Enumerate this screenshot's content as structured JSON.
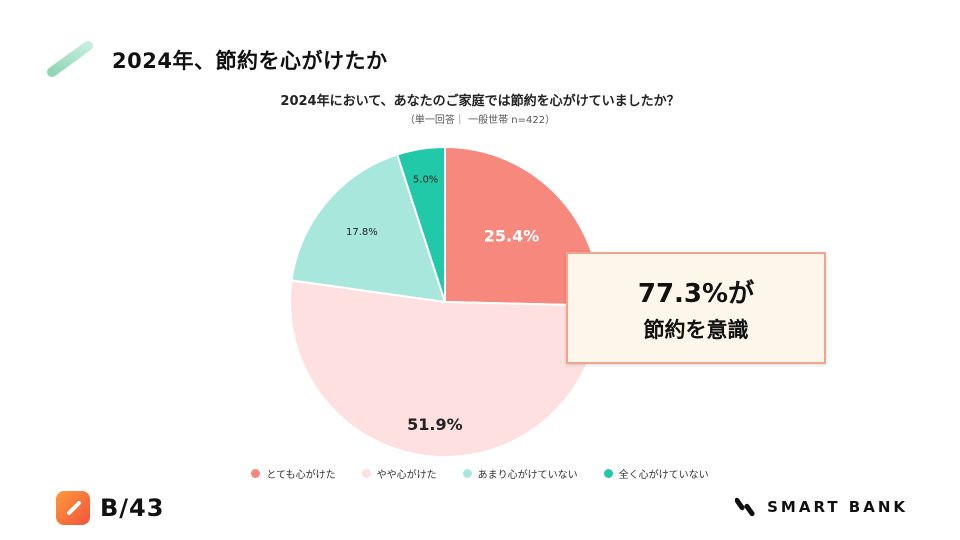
{
  "header": {
    "title": "2024年、節約を心がけたか",
    "accent_color": "#8fd6b4"
  },
  "chart_data": {
    "type": "pie",
    "title": "2024年において、あなたのご家庭では節約を心がけていましたか？",
    "subtitle": "（単一回答｜ 一般世帯 n=422）",
    "categories": [
      "とても心がけた",
      "やや心がけた",
      "あまり心がけていない",
      "全く心がけていない"
    ],
    "values": [
      25.4,
      51.9,
      17.8,
      5.0
    ],
    "labels": [
      "25.4%",
      "51.9%",
      "17.8%",
      "5.0%"
    ],
    "colors": [
      "#f7887d",
      "#fde0df",
      "#a8e8dc",
      "#22c9a8"
    ],
    "legend_position": "bottom",
    "start_angle": "12 o'clock",
    "direction": "clockwise"
  },
  "callout": {
    "value": "77.3",
    "unit": "%",
    "suffix": "が",
    "line2": "節約を意識",
    "border_color": "#f2a58e",
    "background_color": "#fdf6ea"
  },
  "footer": {
    "left_brand": "B/43",
    "right_brand": "SMART BANK"
  }
}
